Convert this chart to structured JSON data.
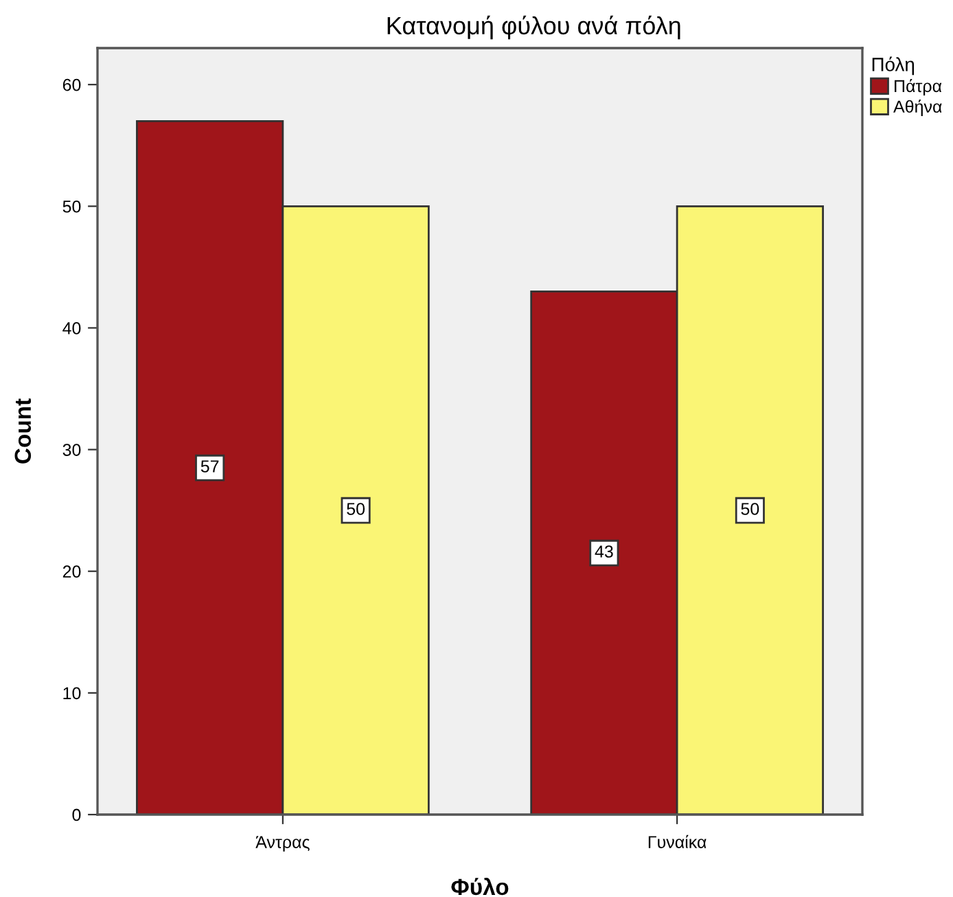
{
  "chart_data": {
    "type": "bar",
    "title": "Κατανομή φύλου ανά πόλη",
    "xlabel": "Φύλο",
    "ylabel": "Count",
    "legend_title": "Πόλη",
    "categories": [
      "Άντρας",
      "Γυναίκα"
    ],
    "series": [
      {
        "name": "Πάτρα",
        "color": "#a0151a",
        "values": [
          57,
          43
        ]
      },
      {
        "name": "Αθήνα",
        "color": "#faf575",
        "values": [
          50,
          50
        ]
      }
    ],
    "ylim": [
      0,
      63
    ],
    "yticks": [
      0,
      10,
      20,
      30,
      40,
      50,
      60
    ],
    "data_labels": true,
    "legend": "right",
    "grid": false
  }
}
